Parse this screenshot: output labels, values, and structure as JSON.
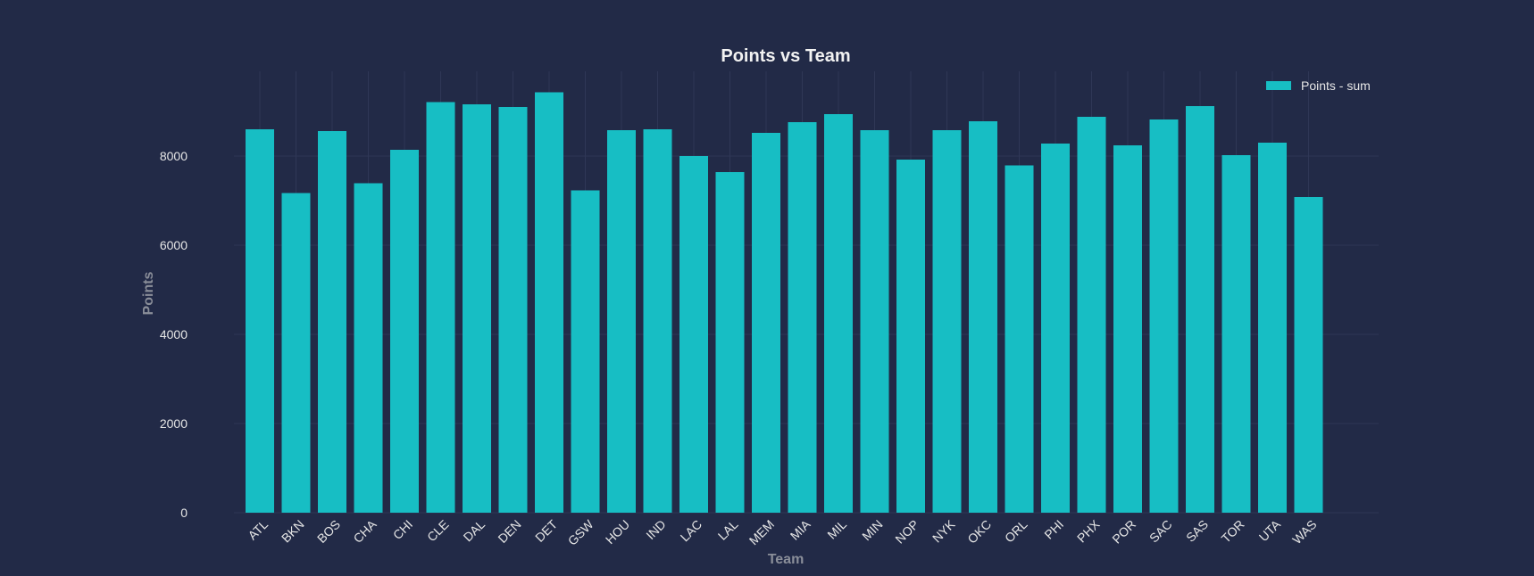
{
  "chart_data": {
    "type": "bar",
    "title": "Points vs Team",
    "xlabel": "Team",
    "ylabel": "Points",
    "ylim": [
      0,
      9900
    ],
    "yticks": [
      0,
      2000,
      4000,
      6000,
      8000
    ],
    "grid": true,
    "legend_position": "top-right",
    "bar_color": "#17bec4",
    "categories": [
      "ATL",
      "BKN",
      "BOS",
      "CHA",
      "CHI",
      "CLE",
      "DAL",
      "DEN",
      "DET",
      "GSW",
      "HOU",
      "IND",
      "LAC",
      "LAL",
      "MEM",
      "MIA",
      "MIL",
      "MIN",
      "NOP",
      "NYK",
      "OKC",
      "ORL",
      "PHI",
      "PHX",
      "POR",
      "SAC",
      "SAS",
      "TOR",
      "UTA",
      "WAS"
    ],
    "series": [
      {
        "name": "Points - sum",
        "values": [
          8600,
          7170,
          8560,
          7390,
          8140,
          9210,
          9160,
          9100,
          9430,
          7230,
          8580,
          8600,
          8000,
          7640,
          8520,
          8760,
          8940,
          8580,
          7920,
          8580,
          8780,
          7790,
          8280,
          8880,
          8240,
          8820,
          9120,
          8020,
          8300,
          7080
        ]
      }
    ]
  }
}
